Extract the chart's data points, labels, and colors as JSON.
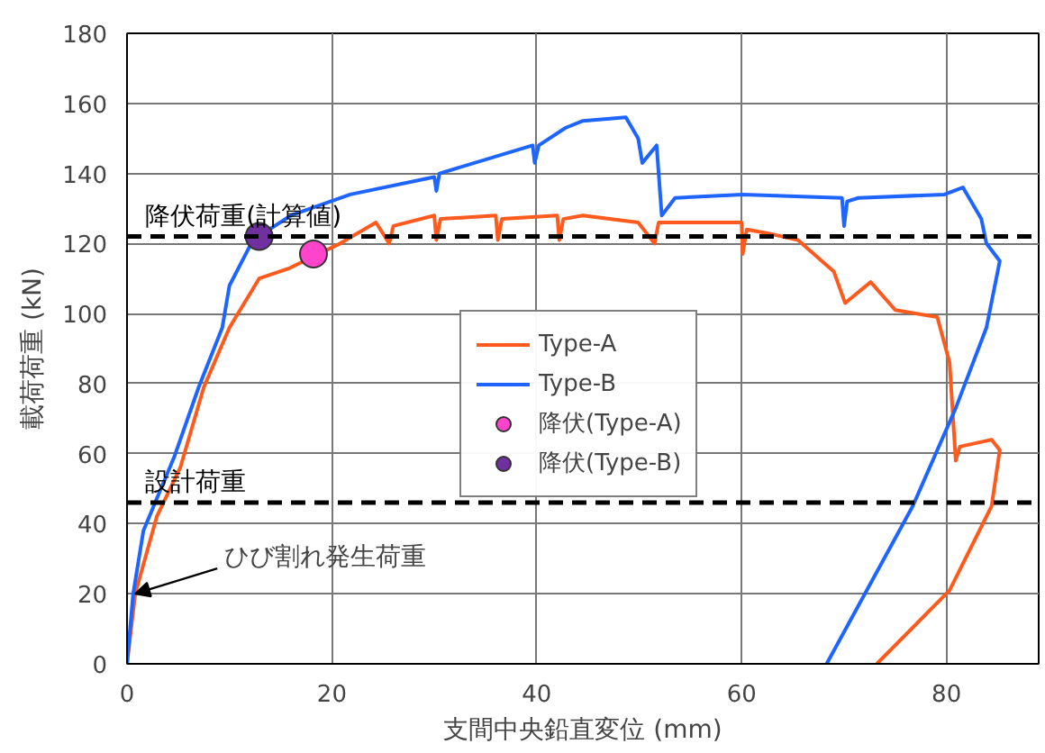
{
  "chart_data": {
    "type": "line",
    "xlabel": "支間中央鉛直変位 (mm)",
    "ylabel": "載荷荷重 (kN)",
    "xlim": [
      0,
      89
    ],
    "ylim": [
      0,
      180
    ],
    "xticks": [
      0,
      20,
      40,
      60,
      80
    ],
    "yticks": [
      0,
      20,
      40,
      60,
      80,
      100,
      120,
      140,
      160,
      180
    ],
    "grid": true,
    "legend": "right",
    "line_style": "solid",
    "series": [
      {
        "name": "Type-A",
        "color": "#ff5a1e",
        "x": [
          0,
          0.8,
          2.9,
          5.2,
          7.5,
          10,
          12.9,
          15.9,
          20.8,
          24.3,
          25.6,
          26,
          30,
          30.2,
          30.6,
          36,
          36.2,
          36.6,
          42,
          42.2,
          42.6,
          44.5,
          49.9,
          51.5,
          51.9,
          60,
          60.1,
          60.5,
          62.4,
          65.5,
          69,
          70.1,
          72.6,
          75,
          79.1,
          80.3,
          80.9,
          81.3,
          84.4,
          85.2,
          84.4,
          80.3,
          73.2
        ],
        "values": [
          0,
          20,
          42,
          56,
          79,
          96,
          110,
          113,
          120,
          126,
          120,
          125,
          128,
          121,
          127,
          128,
          121,
          127,
          128,
          121,
          127,
          128,
          126,
          120,
          126,
          126,
          117,
          124,
          123,
          121,
          112,
          103,
          109,
          101,
          99,
          86,
          58,
          62,
          64,
          61,
          45,
          21,
          0
        ]
      },
      {
        "name": "Type-B",
        "color": "#1e64ff",
        "x": [
          0,
          0.6,
          1.6,
          4.6,
          7,
          9.3,
          10,
          12.3,
          16,
          21.8,
          30,
          30.2,
          30.5,
          39.6,
          39.8,
          40.2,
          42.8,
          44.5,
          48.7,
          49.9,
          50.3,
          51.7,
          52.2,
          53.5,
          60.1,
          69.8,
          70,
          70.3,
          71.4,
          79.8,
          81.6,
          83.4,
          83.9,
          85.2,
          83.9,
          80.9,
          76.7,
          68.3
        ],
        "values": [
          0,
          20,
          38,
          59,
          79,
          96,
          108,
          121,
          128,
          134,
          139,
          135,
          140,
          148,
          143,
          148,
          153,
          155,
          156,
          150,
          143,
          148,
          128,
          133,
          134,
          133,
          125,
          132,
          133,
          134,
          136,
          127,
          120,
          115,
          96,
          73,
          45,
          0
        ]
      },
      {
        "name": "降伏(Type-A)",
        "type": "scatter",
        "marker": "circle",
        "color": "#ff44cc",
        "x": [
          18.2
        ],
        "values": [
          117
        ]
      },
      {
        "name": "降伏(Type-B)",
        "type": "scatter",
        "marker": "circle",
        "color": "#7030a0",
        "x": [
          12.9
        ],
        "values": [
          122
        ]
      }
    ],
    "ref_lines": [
      {
        "axis": "y",
        "value": 122,
        "label": "降伏荷重(計算値)",
        "color": "#000000",
        "line_style": "dashed"
      },
      {
        "axis": "y",
        "value": 46,
        "label": "設計荷重",
        "color": "#000000",
        "line_style": "dashed"
      }
    ],
    "annotations": [
      {
        "text": "ひび割れ発生荷重",
        "x": 0.8,
        "y": 20
      }
    ]
  }
}
